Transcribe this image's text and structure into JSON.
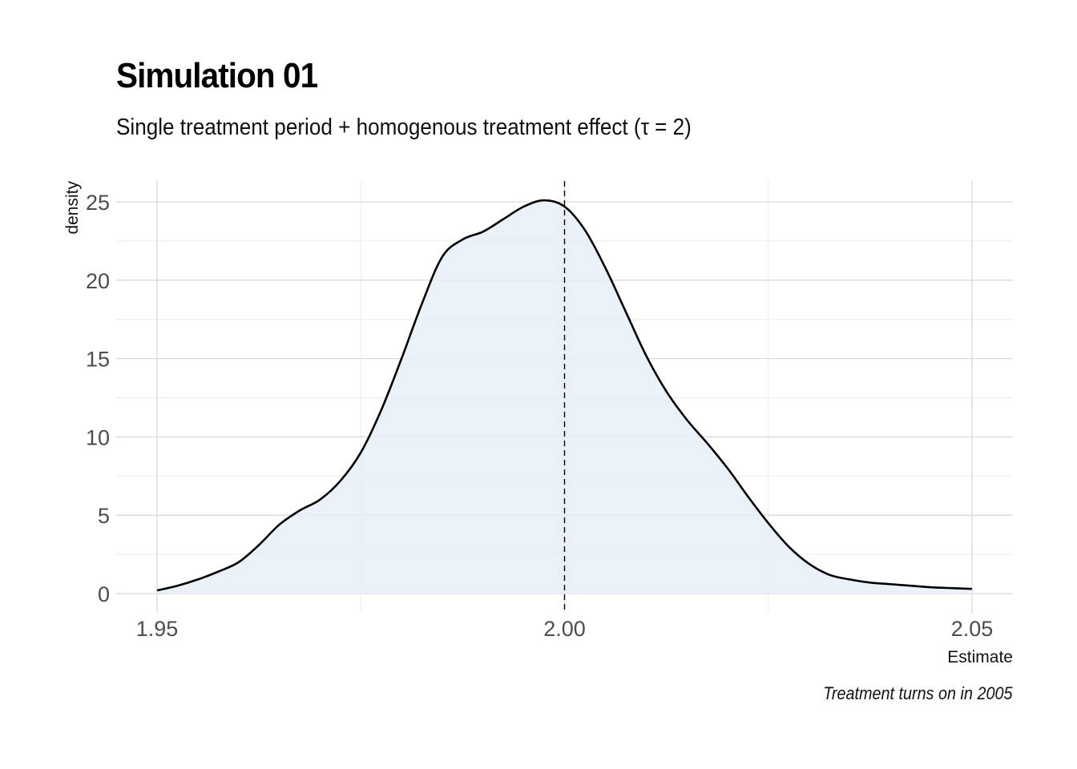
{
  "chart_data": {
    "type": "area",
    "title": "Simulation 01",
    "subtitle": "Single treatment period + homogenous treatment effect (τ = 2)",
    "caption": "Treatment turns on in 2005",
    "xlabel": "Estimate",
    "ylabel": "density",
    "xlim": [
      1.95,
      2.05
    ],
    "ylim": [
      0,
      25
    ],
    "x_ticks": [
      "1.95",
      "2.00",
      "2.05"
    ],
    "y_ticks": [
      "0",
      "5",
      "10",
      "15",
      "20",
      "25"
    ],
    "grid": true,
    "reference_line": {
      "x": 2.0,
      "style": "dashed"
    },
    "fill_color": "#e8eff8",
    "line_color": "#000000",
    "series": [
      {
        "x": [
          1.95,
          1.9525,
          1.955,
          1.9575,
          1.96,
          1.9625,
          1.965,
          1.9675,
          1.97,
          1.9725,
          1.975,
          1.9775,
          1.98,
          1.9825,
          1.985,
          1.9875,
          1.99,
          1.9925,
          1.995,
          1.9975,
          2.0,
          2.0025,
          2.005,
          2.0075,
          2.01,
          2.0125,
          2.015,
          2.0175,
          2.02,
          2.0225,
          2.025,
          2.0275,
          2.03,
          2.0325,
          2.035,
          2.0375,
          2.04,
          2.0425,
          2.045,
          2.0475,
          2.05
        ],
        "y": [
          0.2,
          0.5,
          0.9,
          1.4,
          2.0,
          3.1,
          4.4,
          5.3,
          6.0,
          7.2,
          9.0,
          11.7,
          15.0,
          18.5,
          21.5,
          22.6,
          23.1,
          23.9,
          24.7,
          25.1,
          24.7,
          23.2,
          20.8,
          18.0,
          15.2,
          12.9,
          11.1,
          9.6,
          8.0,
          6.2,
          4.5,
          3.0,
          1.9,
          1.2,
          0.9,
          0.7,
          0.6,
          0.5,
          0.4,
          0.35,
          0.3
        ]
      }
    ]
  }
}
